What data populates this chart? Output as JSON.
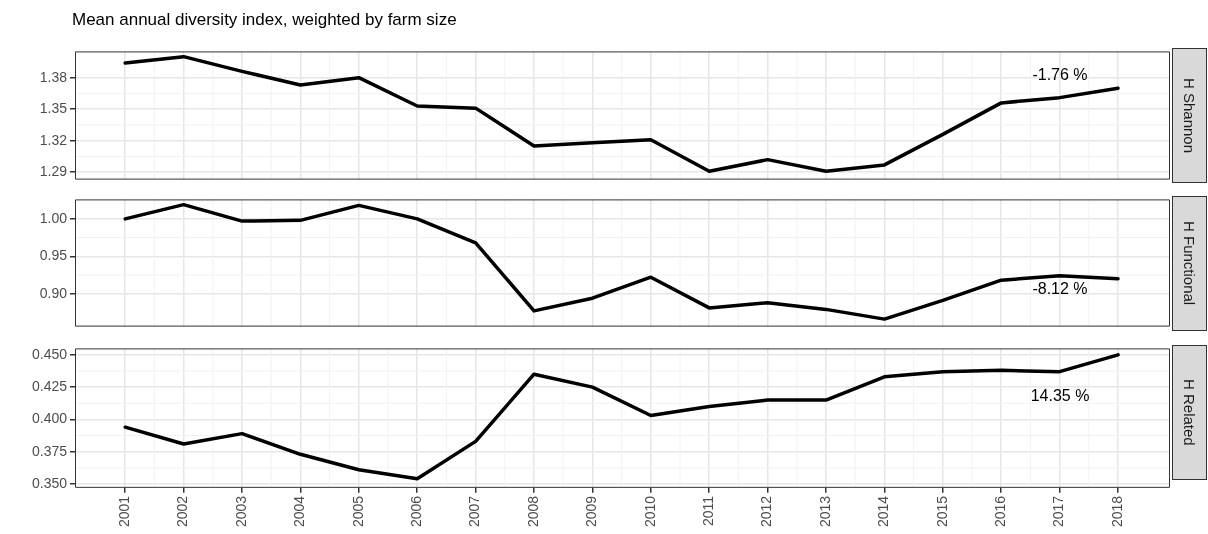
{
  "chart_data": [
    {
      "type": "line",
      "title": "Mean annual diversity index, weighted by farm size",
      "y2label": "H Shannon",
      "x": [
        2001,
        2002,
        2003,
        2004,
        2005,
        2006,
        2007,
        2008,
        2009,
        2010,
        2011,
        2012,
        2013,
        2014,
        2015,
        2016,
        2017,
        2018
      ],
      "series": [
        {
          "color": "#000000",
          "values": [
            1.394,
            1.4,
            1.386,
            1.373,
            1.38,
            1.353,
            1.351,
            1.315,
            1.318,
            1.321,
            1.291,
            1.302,
            1.291,
            1.297,
            1.326,
            1.356,
            1.361,
            1.37
          ]
        }
      ],
      "xlim": [
        2000.14,
        2018.89
      ],
      "xticks": [
        2001,
        2002,
        2003,
        2004,
        2005,
        2006,
        2007,
        2008,
        2009,
        2010,
        2011,
        2012,
        2013,
        2014,
        2015,
        2016,
        2017,
        2018
      ],
      "ylim": [
        1.283,
        1.405
      ],
      "yticks": [
        1.29,
        1.32,
        1.35,
        1.38
      ],
      "grid": true,
      "tick_labels": "y",
      "marker": "none",
      "annotations": [
        "-1.76 %"
      ]
    },
    {
      "type": "line",
      "y2label": "H Functional",
      "x": [
        2001,
        2002,
        2003,
        2004,
        2005,
        2006,
        2007,
        2008,
        2009,
        2010,
        2011,
        2012,
        2013,
        2014,
        2015,
        2016,
        2017,
        2018
      ],
      "series": [
        {
          "color": "#000000",
          "values": [
            1.0,
            1.019,
            0.997,
            0.998,
            1.018,
            1.0,
            0.968,
            0.877,
            0.894,
            0.922,
            0.881,
            0.888,
            0.879,
            0.866,
            0.891,
            0.918,
            0.924,
            0.92
          ]
        }
      ],
      "xlim": [
        2000.14,
        2018.89
      ],
      "xticks": [
        2001,
        2002,
        2003,
        2004,
        2005,
        2006,
        2007,
        2008,
        2009,
        2010,
        2011,
        2012,
        2013,
        2014,
        2015,
        2016,
        2017,
        2018
      ],
      "ylim": [
        0.856,
        1.026
      ],
      "yticks": [
        {
          "value": 0.9,
          "label": "0.90"
        },
        {
          "value": 0.95,
          "label": "0.95"
        },
        {
          "value": 1,
          "label": "1.00"
        }
      ],
      "grid": true,
      "tick_labels": "y",
      "marker": "none",
      "annotations": [
        "-8.12 %"
      ]
    },
    {
      "type": "line",
      "y2label": "H Related",
      "x": [
        2001,
        2002,
        2003,
        2004,
        2005,
        2006,
        2007,
        2008,
        2009,
        2010,
        2011,
        2012,
        2013,
        2014,
        2015,
        2016,
        2017,
        2018
      ],
      "series": [
        {
          "color": "#000000",
          "values": [
            0.394,
            0.381,
            0.389,
            0.373,
            0.361,
            0.354,
            0.383,
            0.435,
            0.425,
            0.403,
            0.41,
            0.415,
            0.415,
            0.433,
            0.437,
            0.438,
            0.437,
            0.45
          ]
        }
      ],
      "xlim": [
        2000.14,
        2018.89
      ],
      "xticks": [
        2001,
        2002,
        2003,
        2004,
        2005,
        2006,
        2007,
        2008,
        2009,
        2010,
        2011,
        2012,
        2013,
        2014,
        2015,
        2016,
        2017,
        2018
      ],
      "ylim": [
        0.347,
        0.455
      ],
      "yticks": [
        {
          "value": 0.35,
          "label": "0.350"
        },
        {
          "value": 0.375,
          "label": "0.375"
        },
        {
          "value": 0.4,
          "label": "0.400"
        },
        {
          "value": 0.425,
          "label": "0.425"
        },
        {
          "value": 0.45,
          "label": "0.450"
        }
      ],
      "grid": true,
      "marker": "none",
      "annotations": [
        "14.35 %"
      ]
    }
  ]
}
